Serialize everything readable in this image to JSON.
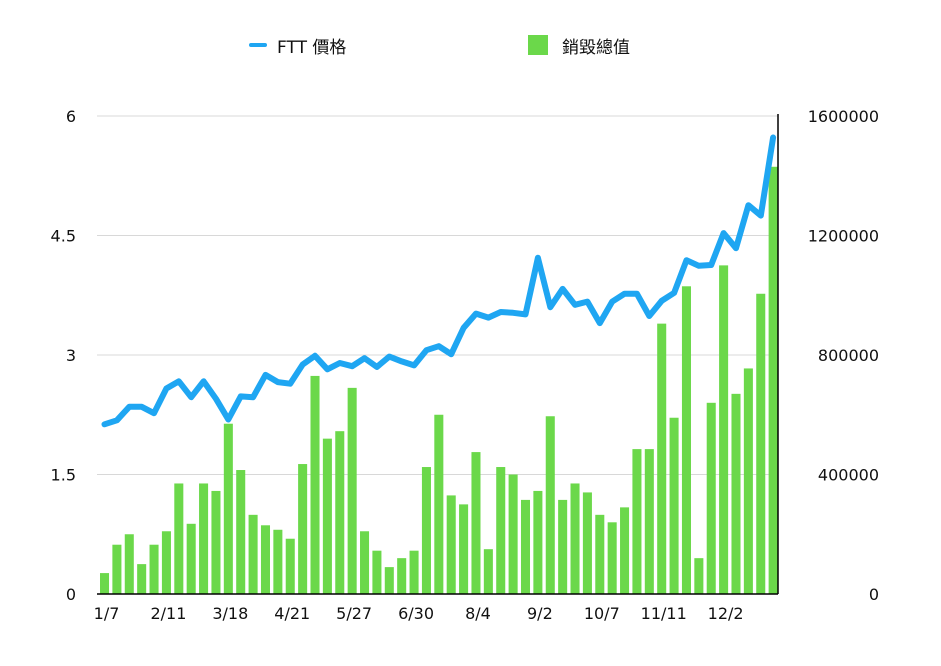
{
  "chart_data": {
    "type": "bar+line",
    "legend": {
      "line_label": "FTT 價格",
      "bar_label": "銷毀總值"
    },
    "colors": {
      "line": "#1fa6f2",
      "bar": "#6bd84a",
      "grid": "#d8d8d8",
      "axis": "#000000"
    },
    "x_tick_labels": [
      "1/7",
      "2/11",
      "3/18",
      "4/21",
      "5/27",
      "6/30",
      "8/4",
      "9/2",
      "10/7",
      "11/11",
      "12/2"
    ],
    "x_tick_indices": [
      0,
      5,
      10,
      15,
      20,
      25,
      30,
      35,
      40,
      45,
      50
    ],
    "y_left": {
      "ticks": [
        "0",
        "1.5",
        "3",
        "4.5",
        "6"
      ],
      "range": [
        0,
        6
      ]
    },
    "y_right": {
      "ticks": [
        "0",
        "400000",
        "800000",
        "1200000",
        "1600000"
      ],
      "range": [
        0,
        1600000
      ]
    },
    "series": [
      {
        "name": "FTT 價格",
        "kind": "line",
        "axis": "left",
        "values": [
          2.13,
          2.18,
          2.35,
          2.35,
          2.27,
          2.58,
          2.67,
          2.47,
          2.67,
          2.45,
          2.19,
          2.48,
          2.47,
          2.75,
          2.66,
          2.64,
          2.88,
          2.99,
          2.82,
          2.9,
          2.86,
          2.96,
          2.85,
          2.98,
          2.92,
          2.87,
          3.06,
          3.11,
          3.01,
          3.34,
          3.52,
          3.47,
          3.54,
          3.53,
          3.51,
          4.22,
          3.6,
          3.83,
          3.63,
          3.67,
          3.4,
          3.67,
          3.77,
          3.77,
          3.49,
          3.68,
          3.78,
          4.19,
          4.12,
          4.13,
          4.53,
          4.34,
          4.88,
          4.75,
          5.73
        ]
      },
      {
        "name": "銷毀總值",
        "kind": "bar",
        "axis": "right",
        "values": [
          70000,
          165000,
          200000,
          100000,
          165000,
          210000,
          370000,
          235000,
          370000,
          345000,
          570000,
          415000,
          265000,
          230000,
          215000,
          185000,
          435000,
          730000,
          520000,
          545000,
          690000,
          210000,
          145000,
          90000,
          120000,
          145000,
          425000,
          600000,
          330000,
          300000,
          475000,
          150000,
          425000,
          400000,
          315000,
          345000,
          595000,
          315000,
          370000,
          340000,
          265000,
          240000,
          290000,
          485000,
          485000,
          905000,
          590000,
          1030000,
          120000,
          640000,
          1100000,
          670000,
          755000,
          1005000,
          1430000
        ]
      }
    ]
  }
}
